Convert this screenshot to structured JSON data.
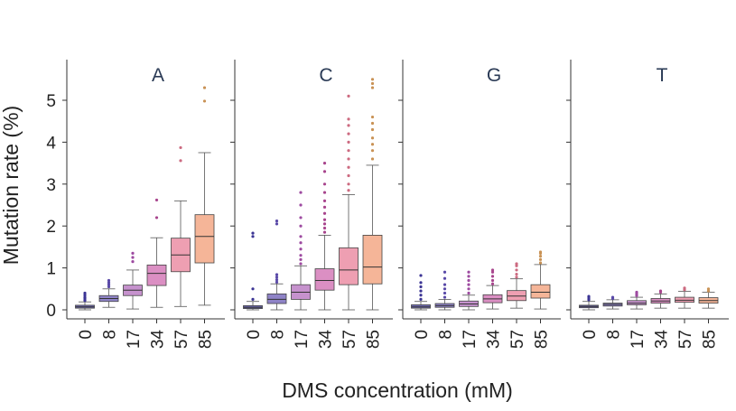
{
  "chart_data": {
    "type": "box",
    "xlabel": "DMS concentration (mM)",
    "ylabel": "Mutation rate (%)",
    "ylim": [
      0,
      5.9
    ],
    "yticks": [
      0,
      1,
      2,
      3,
      4,
      5
    ],
    "categories": [
      "0",
      "8",
      "17",
      "34",
      "57",
      "85"
    ],
    "colors": [
      "#6e6ab4",
      "#8f83c7",
      "#c692cd",
      "#db8fc3",
      "#ee9fb2",
      "#f5b598"
    ],
    "outlier_colors": [
      "#3b3494",
      "#5a4aa8",
      "#9d4aa0",
      "#a8458d",
      "#cc6a80",
      "#c99255"
    ],
    "panels": [
      {
        "title": "A",
        "boxes": [
          {
            "q1": 0.04,
            "median": 0.07,
            "q3": 0.11,
            "low": 0.0,
            "high": 0.19,
            "outliers": [
              0.22,
              0.26,
              0.3,
              0.35,
              0.4
            ]
          },
          {
            "q1": 0.2,
            "median": 0.27,
            "q3": 0.34,
            "low": 0.06,
            "high": 0.5,
            "outliers": [
              0.55,
              0.6,
              0.65,
              0.7
            ]
          },
          {
            "q1": 0.34,
            "median": 0.47,
            "q3": 0.59,
            "low": 0.02,
            "high": 0.95,
            "outliers": [
              1.15,
              1.25,
              1.35
            ]
          },
          {
            "q1": 0.58,
            "median": 0.87,
            "q3": 1.07,
            "low": 0.06,
            "high": 1.72,
            "outliers": [
              2.2,
              2.62
            ]
          },
          {
            "q1": 0.91,
            "median": 1.31,
            "q3": 1.71,
            "low": 0.08,
            "high": 2.6,
            "outliers": [
              3.56,
              3.87
            ]
          },
          {
            "q1": 1.12,
            "median": 1.75,
            "q3": 2.27,
            "low": 0.11,
            "high": 3.75,
            "outliers": [
              4.98,
              5.3
            ]
          }
        ]
      },
      {
        "title": "C",
        "boxes": [
          {
            "q1": 0.03,
            "median": 0.06,
            "q3": 0.1,
            "low": 0.0,
            "high": 0.2,
            "outliers": [
              0.25,
              0.5,
              1.75,
              1.83
            ]
          },
          {
            "q1": 0.15,
            "median": 0.25,
            "q3": 0.38,
            "low": 0.0,
            "high": 0.62,
            "outliers": [
              0.66,
              0.72,
              0.78,
              0.84,
              2.05,
              2.12
            ]
          },
          {
            "q1": 0.25,
            "median": 0.42,
            "q3": 0.6,
            "low": 0.0,
            "high": 1.05,
            "outliers": [
              1.1,
              1.2,
              1.3,
              1.45,
              1.6,
              1.75,
              2.0,
              2.2,
              2.5,
              2.8
            ]
          },
          {
            "q1": 0.47,
            "median": 0.7,
            "q3": 0.98,
            "low": 0.0,
            "high": 1.78,
            "outliers": [
              1.85,
              1.95,
              2.05,
              2.15,
              2.3,
              2.45,
              2.6,
              2.8,
              3.0,
              3.3,
              3.5
            ]
          },
          {
            "q1": 0.6,
            "median": 0.95,
            "q3": 1.48,
            "low": 0.0,
            "high": 2.75,
            "outliers": [
              2.85,
              3.0,
              3.2,
              3.4,
              3.6,
              3.8,
              4.0,
              4.2,
              4.4,
              4.55,
              5.1
            ]
          },
          {
            "q1": 0.62,
            "median": 1.02,
            "q3": 1.78,
            "low": 0.0,
            "high": 3.45,
            "outliers": [
              3.6,
              3.8,
              3.95,
              4.1,
              4.3,
              4.45,
              4.6,
              5.3,
              5.4,
              5.5
            ]
          }
        ]
      },
      {
        "title": "G",
        "boxes": [
          {
            "q1": 0.04,
            "median": 0.07,
            "q3": 0.12,
            "low": 0.0,
            "high": 0.2,
            "outliers": [
              0.25,
              0.35,
              0.45,
              0.55,
              0.65,
              0.82
            ]
          },
          {
            "q1": 0.06,
            "median": 0.1,
            "q3": 0.15,
            "low": 0.0,
            "high": 0.25,
            "outliers": [
              0.3,
              0.4,
              0.5,
              0.6,
              0.75,
              0.9
            ]
          },
          {
            "q1": 0.08,
            "median": 0.14,
            "q3": 0.21,
            "low": 0.0,
            "high": 0.35,
            "outliers": [
              0.4,
              0.5,
              0.6,
              0.7,
              0.8,
              0.9
            ]
          },
          {
            "q1": 0.17,
            "median": 0.26,
            "q3": 0.36,
            "low": 0.02,
            "high": 0.58,
            "outliers": [
              0.62,
              0.7,
              0.8,
              0.9,
              0.95
            ]
          },
          {
            "q1": 0.22,
            "median": 0.33,
            "q3": 0.46,
            "low": 0.04,
            "high": 0.74,
            "outliers": [
              0.78,
              0.85,
              0.95,
              1.05,
              1.1
            ]
          },
          {
            "q1": 0.28,
            "median": 0.42,
            "q3": 0.6,
            "low": 0.02,
            "high": 1.08,
            "outliers": [
              1.12,
              1.2,
              1.28,
              1.35,
              1.38
            ]
          }
        ]
      },
      {
        "title": "T",
        "boxes": [
          {
            "q1": 0.05,
            "median": 0.08,
            "q3": 0.11,
            "low": 0.0,
            "high": 0.2,
            "outliers": [
              0.24,
              0.28,
              0.32
            ]
          },
          {
            "q1": 0.09,
            "median": 0.13,
            "q3": 0.16,
            "low": 0.02,
            "high": 0.24,
            "outliers": [
              0.27,
              0.3
            ]
          },
          {
            "q1": 0.12,
            "median": 0.16,
            "q3": 0.22,
            "low": 0.02,
            "high": 0.3,
            "outliers": [
              0.34,
              0.38,
              0.42
            ]
          },
          {
            "q1": 0.16,
            "median": 0.21,
            "q3": 0.27,
            "low": 0.04,
            "high": 0.38,
            "outliers": [
              0.42,
              0.45
            ]
          },
          {
            "q1": 0.18,
            "median": 0.23,
            "q3": 0.3,
            "low": 0.04,
            "high": 0.44,
            "outliers": [
              0.48,
              0.52
            ]
          },
          {
            "q1": 0.16,
            "median": 0.22,
            "q3": 0.29,
            "low": 0.04,
            "high": 0.42,
            "outliers": [
              0.45,
              0.5
            ]
          }
        ]
      }
    ]
  }
}
